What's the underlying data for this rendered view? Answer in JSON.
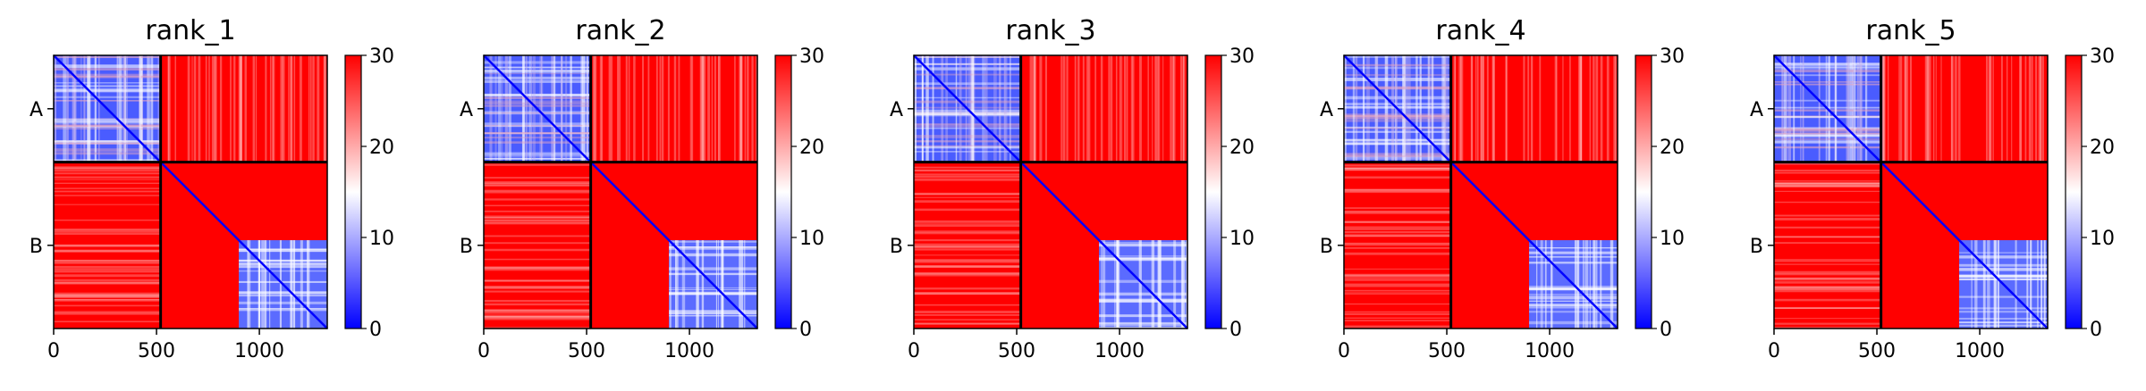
{
  "chart_data": {
    "type": "heatmap",
    "colormap": "bwr",
    "colorbar": {
      "min": 0,
      "max": 30,
      "ticks": [
        "0",
        "10",
        "20",
        "30"
      ]
    },
    "x_ticks": [
      "0",
      "500",
      "1000"
    ],
    "x_tick_values": [
      0,
      500,
      1000
    ],
    "xlim": [
      0,
      1330
    ],
    "y_categories": [
      "A",
      "B"
    ],
    "chain_boundary": 520,
    "chain_lengths": {
      "A": 520,
      "B": 810
    },
    "colors": {
      "low": "#0000ff",
      "mid": "#ffffff",
      "high": "#ff0000",
      "boundary": "#000000"
    },
    "panels": [
      {
        "title": "rank_1"
      },
      {
        "title": "rank_2"
      },
      {
        "title": "rank_3"
      },
      {
        "title": "rank_4"
      },
      {
        "title": "rank_5"
      }
    ]
  }
}
